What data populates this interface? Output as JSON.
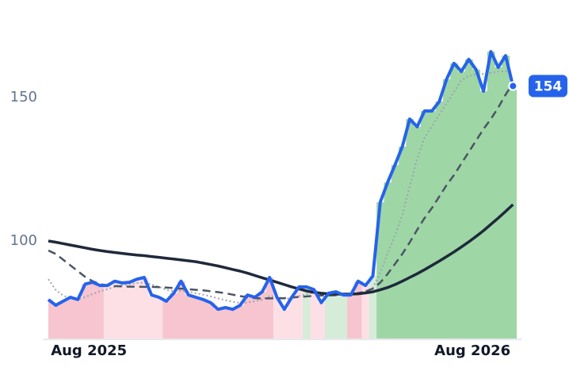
{
  "chart_data": {
    "type": "line",
    "x": [
      0,
      1,
      2,
      3,
      4,
      5,
      6,
      7,
      8,
      9,
      10,
      11,
      12,
      13,
      14,
      15,
      16,
      17,
      18,
      19,
      20,
      21,
      22,
      23,
      24,
      25,
      26,
      27,
      28,
      29,
      30,
      31,
      32,
      33,
      34,
      35,
      36,
      37,
      38,
      39,
      40,
      41,
      42,
      43,
      44,
      45,
      46,
      47,
      48,
      49,
      50,
      51,
      52,
      53,
      54,
      55,
      56,
      57,
      58,
      59,
      60,
      61,
      62,
      63
    ],
    "xlim": [
      0,
      63.5
    ],
    "xticks": [
      {
        "value": 5.5,
        "label": "Aug 2025"
      },
      {
        "value": 57.5,
        "label": "Aug 2026"
      }
    ],
    "ylim": [
      66,
      180
    ],
    "yticks": [
      100,
      150
    ],
    "band_colors": [
      "#f7c5cf",
      "#f7c5cf",
      "#f7c5cf",
      "#f7c5cf",
      "#f7c5cf",
      "#f7c5cf",
      "#f7c5cf",
      "#f7c5cf",
      "#fde0e6",
      "#fde0e6",
      "#fde0e6",
      "#fde0e6",
      "#fde0e6",
      "#fde0e6",
      "#fde0e6",
      "#fde0e6",
      "#f7c5cf",
      "#f7c5cf",
      "#f7c5cf",
      "#f7c5cf",
      "#f7c5cf",
      "#f7c5cf",
      "#f7c5cf",
      "#f7c5cf",
      "#f7c5cf",
      "#f7c5cf",
      "#f7c5cf",
      "#f7c5cf",
      "#f7c5cf",
      "#f7c5cf",
      "#f7c5cf",
      "#fde0e6",
      "#fde0e6",
      "#fde0e6",
      "#fde0e6",
      "#d5ecd9",
      "#fde0e6",
      "#fde0e6",
      "#d5ecd9",
      "#d5ecd9",
      "#d5ecd9",
      "#f7c5cf",
      "#f7c5cf",
      "#fde0e6",
      "#d5ecd9",
      "#9fd6a6",
      "#9fd6a6",
      "#9fd6a6",
      "#9fd6a6",
      "#9fd6a6",
      "#9fd6a6",
      "#9fd6a6",
      "#9fd6a6",
      "#9fd6a6",
      "#9fd6a6",
      "#9fd6a6",
      "#9fd6a6",
      "#9fd6a6",
      "#9fd6a6",
      "#9fd6a6",
      "#9fd6a6",
      "#9fd6a6",
      "#9fd6a6",
      "#9fd6a6"
    ],
    "series": [
      {
        "color": "#2563eb",
        "style": "price",
        "values": [
          79.6,
          77.6,
          79,
          80.4,
          79.6,
          85,
          85.6,
          84.5,
          84.5,
          86,
          85.4,
          85.6,
          86.7,
          87.3,
          81.2,
          80.4,
          79,
          81.8,
          86,
          81.2,
          80.4,
          79.6,
          78.5,
          76.2,
          76.8,
          76.2,
          77.6,
          81.2,
          80.4,
          82.3,
          87.3,
          80.4,
          76.2,
          80.4,
          84,
          84,
          83.1,
          78.5,
          81.8,
          82.3,
          81.2,
          81.2,
          86,
          84.5,
          87.8,
          113.5,
          120.4,
          126.5,
          132.9,
          142.5,
          139.8,
          145.3,
          145.3,
          148.6,
          156.4,
          161.9,
          159.1,
          163.3,
          159.7,
          152.2,
          166,
          160.5,
          164.6,
          154
        ]
      },
      {
        "color": "#1e293b",
        "style": "solid",
        "values": [
          100,
          99.6,
          99.1,
          98.6,
          98.1,
          97.6,
          97.1,
          96.7,
          96.3,
          96,
          95.7,
          95.4,
          95.1,
          94.9,
          94.6,
          94.3,
          94,
          93.7,
          93.4,
          93.1,
          92.8,
          92.3,
          91.8,
          91.3,
          90.7,
          90.1,
          89.5,
          88.8,
          88,
          87.2,
          86.4,
          85.6,
          84.8,
          84,
          83.3,
          82.6,
          82.1,
          81.8,
          81.6,
          81.5,
          81.5,
          81.5,
          81.6,
          81.9,
          82.3,
          83,
          83.8,
          84.8,
          86,
          87.3,
          88.6,
          90,
          91.5,
          93,
          94.6,
          96.2,
          97.9,
          99.7,
          101.6,
          103.6,
          105.8,
          108,
          110.3,
          112.7
        ]
      },
      {
        "color": "#4b5563",
        "style": "dashed",
        "values": [
          96.7,
          95.5,
          93.5,
          91.5,
          89.5,
          87.5,
          86,
          85,
          84.5,
          84.3,
          84.2,
          84.1,
          84.1,
          84,
          84,
          83.9,
          83.8,
          83.6,
          83.4,
          83.2,
          83,
          82.8,
          82.5,
          82.2,
          81.8,
          81.3,
          80.8,
          80.4,
          80.1,
          80,
          80,
          80,
          80.1,
          80.3,
          80.5,
          80.7,
          80.9,
          81,
          81,
          81.1,
          81.2,
          81.4,
          81.8,
          82.4,
          83.4,
          85.5,
          88.5,
          92,
          95.5,
          99.5,
          103.9,
          108,
          111.5,
          115.5,
          119.5,
          123,
          127,
          131,
          135,
          139,
          142.5,
          146.5,
          151,
          155
        ]
      },
      {
        "color": "#9ca3af",
        "style": "dotted",
        "values": [
          86.7,
          83,
          81,
          80,
          79.6,
          80.5,
          81.5,
          82.5,
          83.2,
          84,
          84.5,
          85,
          85.3,
          85.5,
          84.8,
          84,
          83,
          82.5,
          82.7,
          82.3,
          81.8,
          81.3,
          80.7,
          80,
          79.4,
          78.8,
          78.4,
          78.6,
          79,
          79.6,
          80.8,
          80.6,
          79.8,
          80,
          80.8,
          81.5,
          82,
          81.6,
          81.4,
          81.6,
          81.6,
          81.4,
          82,
          82.6,
          83.6,
          89,
          95.6,
          102,
          109,
          119,
          128.7,
          136,
          140,
          144,
          148,
          152,
          156,
          157.5,
          158,
          158.2,
          158.6,
          159,
          159.2,
          159
        ]
      }
    ]
  }
}
